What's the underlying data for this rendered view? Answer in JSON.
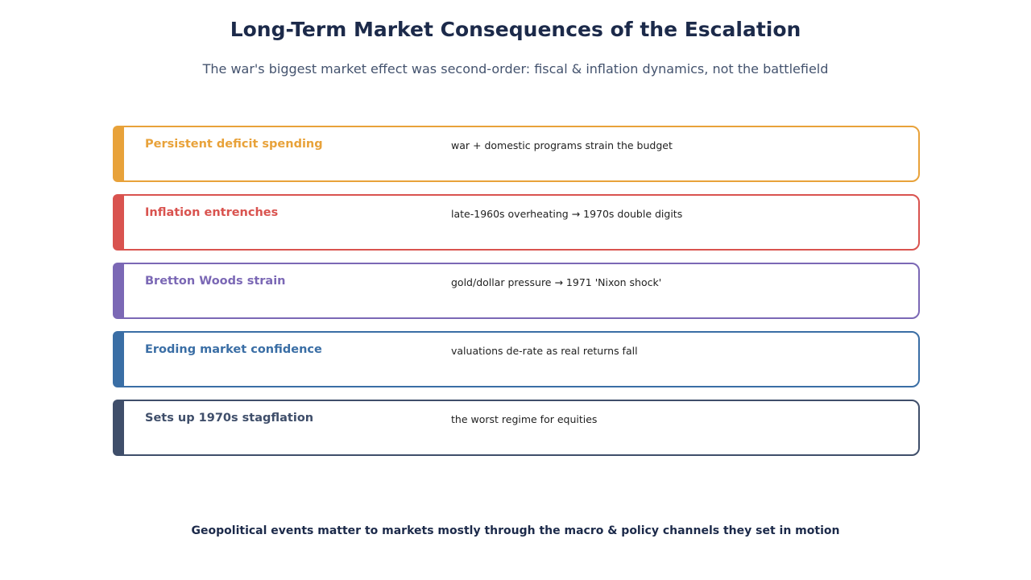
{
  "header": {
    "title": "Long-Term Market Consequences of the Escalation",
    "subtitle": "The war's biggest market effect was second-order: fiscal & inflation dynamics, not the battlefield"
  },
  "items": [
    {
      "label": "Persistent deficit spending",
      "detail": "war + domestic programs strain the budget",
      "color": "#e8a23a"
    },
    {
      "label": "Inflation entrenches",
      "detail": "late-1960s overheating → 1970s double digits",
      "color": "#d9534f"
    },
    {
      "label": "Bretton Woods strain",
      "detail": "gold/dollar pressure → 1971 'Nixon shock'",
      "color": "#7b68b5"
    },
    {
      "label": "Eroding market confidence",
      "detail": "valuations de-rate as real returns fall",
      "color": "#3a6ea5"
    },
    {
      "label": "Sets up 1970s stagflation",
      "detail": "the worst regime for equities",
      "color": "#3f4e6a"
    }
  ],
  "footer": "Geopolitical events matter to markets mostly through the macro & policy channels they set in motion"
}
